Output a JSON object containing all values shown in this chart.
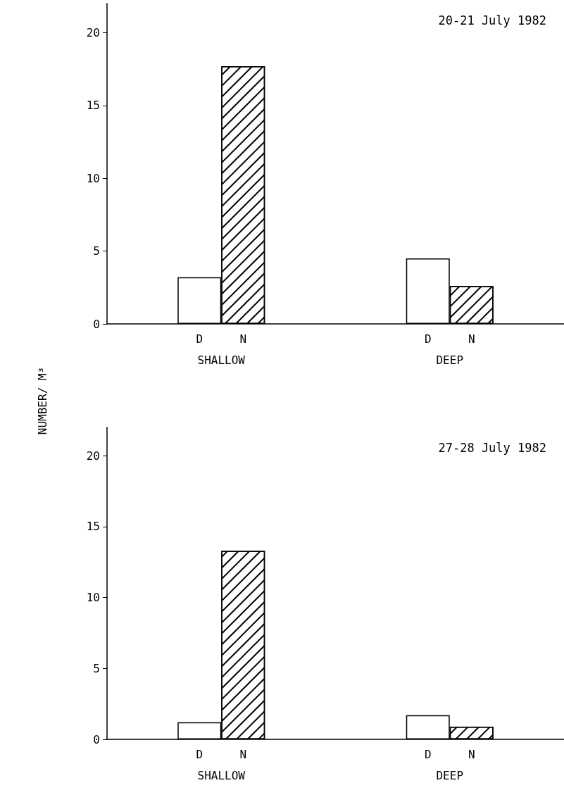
{
  "chart_data": [
    {
      "type": "bar",
      "title": "20-21 July 1982",
      "ylabel": "NUMBER/ M³",
      "categories": [
        "SHALLOW",
        "DEEP"
      ],
      "series": [
        {
          "name": "D",
          "color": "#ffffff",
          "values": [
            3.2,
            4.5
          ]
        },
        {
          "name": "N",
          "color": "#000000",
          "values": [
            17.7,
            2.6
          ]
        }
      ],
      "ylim": [
        0,
        22
      ],
      "yticks": [
        0,
        5,
        10,
        15,
        20
      ],
      "grid": false,
      "legend": false
    },
    {
      "type": "bar",
      "title": "27-28 July 1982",
      "categories": [
        "SHALLOW",
        "DEEP"
      ],
      "series": [
        {
          "name": "D",
          "color": "#ffffff",
          "values": [
            1.2,
            1.7
          ]
        },
        {
          "name": "N",
          "color": "#000000",
          "values": [
            13.3,
            0.9
          ]
        }
      ],
      "ylim": [
        0,
        22
      ],
      "yticks": [
        0,
        5,
        10,
        15,
        20
      ],
      "grid": false,
      "legend": false
    }
  ]
}
